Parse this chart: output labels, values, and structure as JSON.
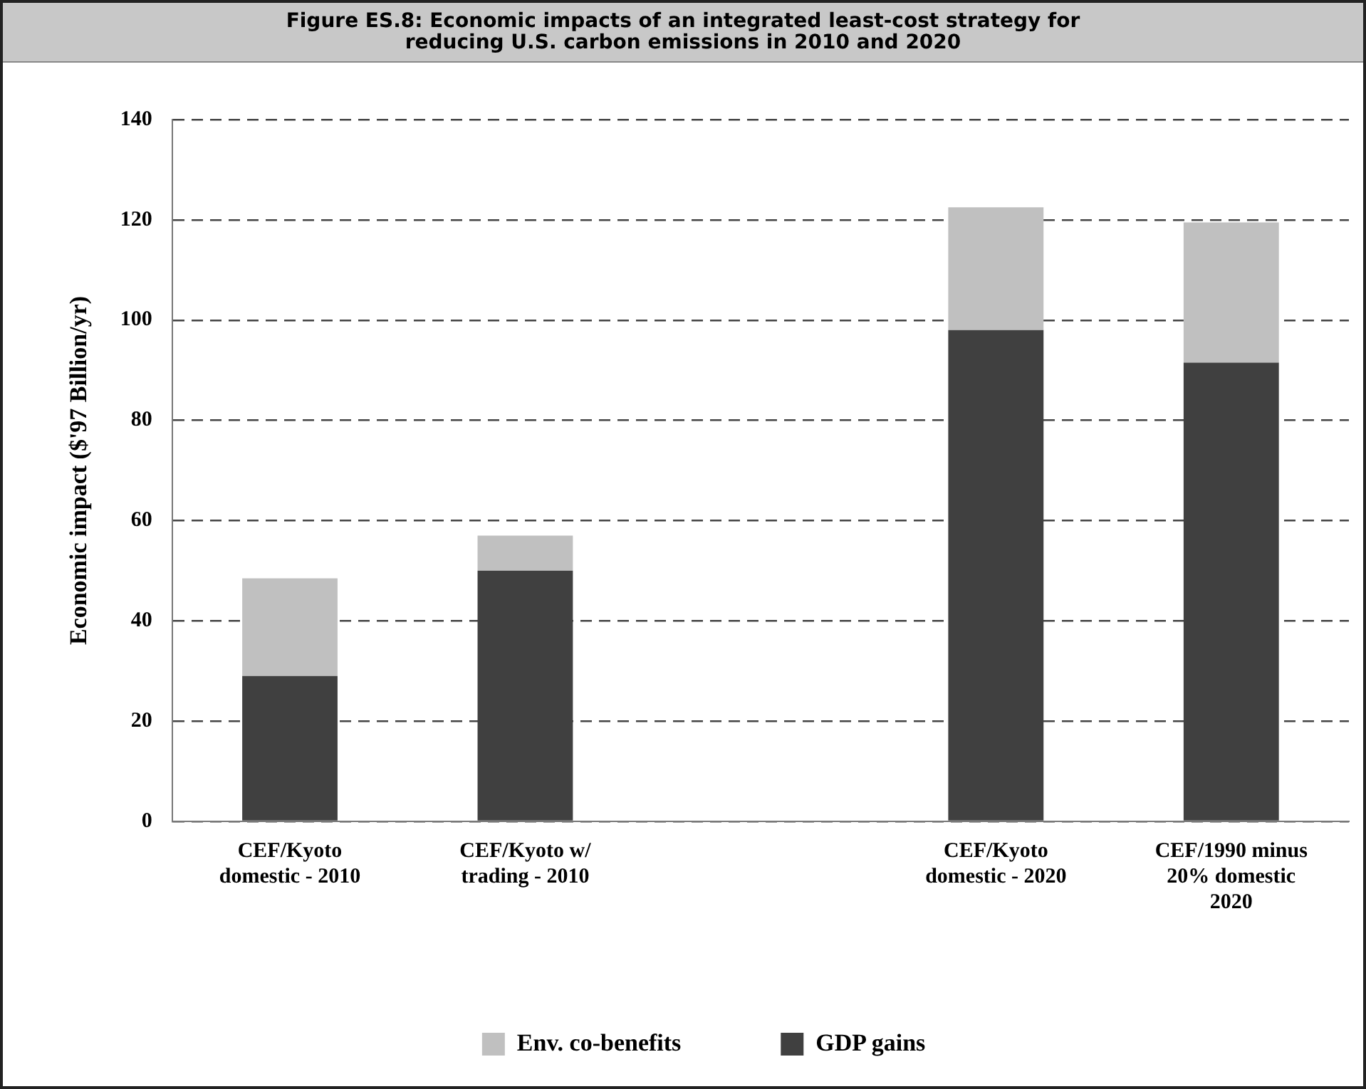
{
  "chart_data": {
    "type": "bar",
    "title": "Figure ES.8: Economic impacts of an integrated least-cost strategy for reducing U.S. carbon emissions in 2010 and 2020",
    "ylabel": "Economic impact ($'97 Billion/yr)",
    "categories": [
      "CEF/Kyoto domestic - 2010",
      "CEF/Kyoto w/ trading - 2010",
      null,
      "CEF/Kyoto domestic - 2020",
      "CEF/1990 minus 20% domestic 2020"
    ],
    "stacked": true,
    "series": [
      {
        "name": "GDP gains",
        "color": "#404040",
        "values": [
          29,
          50,
          null,
          98,
          91.5
        ]
      },
      {
        "name": "Env. co-benefits",
        "color": "#c0c0c0",
        "values": [
          19.5,
          7,
          null,
          24.5,
          28
        ]
      }
    ],
    "ylim": [
      0,
      140
    ],
    "yticks": [
      0,
      20,
      40,
      60,
      80,
      100,
      120,
      140
    ],
    "grid": "y",
    "legend": "bottom"
  }
}
